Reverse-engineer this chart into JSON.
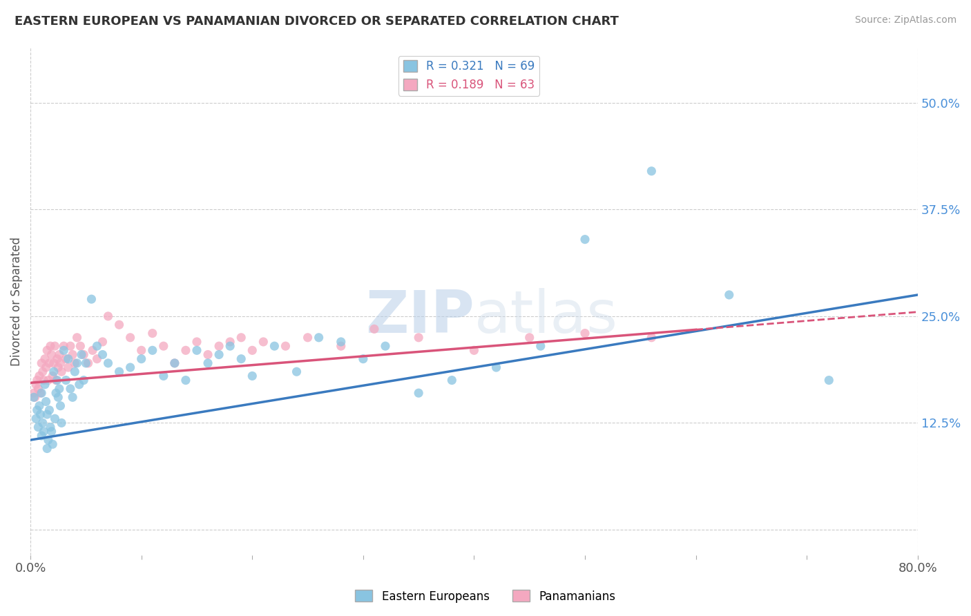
{
  "title": "EASTERN EUROPEAN VS PANAMANIAN DIVORCED OR SEPARATED CORRELATION CHART",
  "source": "Source: ZipAtlas.com",
  "ylabel": "Divorced or Separated",
  "legend_labels": [
    "Eastern Europeans",
    "Panamanians"
  ],
  "r_blue": 0.321,
  "n_blue": 69,
  "r_pink": 0.189,
  "n_pink": 63,
  "blue_color": "#89c4e1",
  "pink_color": "#f4a8c0",
  "blue_line_color": "#3a7abf",
  "pink_line_color": "#d9547a",
  "xmin": 0.0,
  "xmax": 0.8,
  "ymin": -0.03,
  "ymax": 0.565,
  "yticks": [
    0.0,
    0.125,
    0.25,
    0.375,
    0.5
  ],
  "ytick_labels": [
    "",
    "12.5%",
    "25.0%",
    "37.5%",
    "50.0%"
  ],
  "watermark_zip": "ZIP",
  "watermark_atlas": "atlas",
  "background_color": "#ffffff",
  "blue_line_x0": 0.0,
  "blue_line_x1": 0.8,
  "blue_line_y0": 0.105,
  "blue_line_y1": 0.275,
  "pink_line_x0": 0.0,
  "pink_line_x1": 0.8,
  "pink_line_y0": 0.172,
  "pink_line_y1": 0.255,
  "blue_scatter_x": [
    0.003,
    0.005,
    0.006,
    0.007,
    0.008,
    0.009,
    0.01,
    0.01,
    0.011,
    0.012,
    0.013,
    0.014,
    0.015,
    0.015,
    0.016,
    0.017,
    0.018,
    0.019,
    0.02,
    0.021,
    0.022,
    0.023,
    0.024,
    0.025,
    0.026,
    0.027,
    0.028,
    0.03,
    0.032,
    0.034,
    0.036,
    0.038,
    0.04,
    0.042,
    0.044,
    0.046,
    0.048,
    0.05,
    0.055,
    0.06,
    0.065,
    0.07,
    0.08,
    0.09,
    0.1,
    0.11,
    0.12,
    0.13,
    0.14,
    0.15,
    0.16,
    0.17,
    0.18,
    0.19,
    0.2,
    0.22,
    0.24,
    0.26,
    0.28,
    0.3,
    0.32,
    0.35,
    0.38,
    0.42,
    0.46,
    0.5,
    0.56,
    0.63,
    0.72
  ],
  "blue_scatter_y": [
    0.155,
    0.13,
    0.14,
    0.12,
    0.145,
    0.135,
    0.11,
    0.16,
    0.125,
    0.115,
    0.17,
    0.15,
    0.135,
    0.095,
    0.105,
    0.14,
    0.12,
    0.115,
    0.1,
    0.185,
    0.13,
    0.16,
    0.175,
    0.155,
    0.165,
    0.145,
    0.125,
    0.21,
    0.175,
    0.2,
    0.165,
    0.155,
    0.185,
    0.195,
    0.17,
    0.205,
    0.175,
    0.195,
    0.27,
    0.215,
    0.205,
    0.195,
    0.185,
    0.19,
    0.2,
    0.21,
    0.18,
    0.195,
    0.175,
    0.21,
    0.195,
    0.205,
    0.215,
    0.2,
    0.18,
    0.215,
    0.185,
    0.225,
    0.22,
    0.2,
    0.215,
    0.16,
    0.175,
    0.19,
    0.215,
    0.34,
    0.42,
    0.275,
    0.175
  ],
  "pink_scatter_x": [
    0.003,
    0.004,
    0.005,
    0.006,
    0.007,
    0.008,
    0.009,
    0.01,
    0.011,
    0.012,
    0.013,
    0.014,
    0.015,
    0.016,
    0.017,
    0.018,
    0.019,
    0.02,
    0.021,
    0.022,
    0.023,
    0.024,
    0.025,
    0.026,
    0.027,
    0.028,
    0.03,
    0.032,
    0.034,
    0.036,
    0.038,
    0.04,
    0.042,
    0.045,
    0.048,
    0.052,
    0.056,
    0.06,
    0.065,
    0.07,
    0.08,
    0.09,
    0.1,
    0.11,
    0.12,
    0.13,
    0.14,
    0.15,
    0.16,
    0.17,
    0.18,
    0.19,
    0.2,
    0.21,
    0.23,
    0.25,
    0.28,
    0.31,
    0.35,
    0.4,
    0.45,
    0.5,
    0.56
  ],
  "pink_scatter_y": [
    0.16,
    0.155,
    0.17,
    0.175,
    0.165,
    0.18,
    0.16,
    0.195,
    0.185,
    0.175,
    0.2,
    0.19,
    0.21,
    0.175,
    0.195,
    0.215,
    0.205,
    0.18,
    0.195,
    0.215,
    0.175,
    0.2,
    0.19,
    0.205,
    0.195,
    0.185,
    0.215,
    0.2,
    0.19,
    0.215,
    0.205,
    0.195,
    0.225,
    0.215,
    0.205,
    0.195,
    0.21,
    0.2,
    0.22,
    0.25,
    0.24,
    0.225,
    0.21,
    0.23,
    0.215,
    0.195,
    0.21,
    0.22,
    0.205,
    0.215,
    0.22,
    0.225,
    0.21,
    0.22,
    0.215,
    0.225,
    0.215,
    0.235,
    0.225,
    0.21,
    0.225,
    0.23,
    0.225
  ]
}
